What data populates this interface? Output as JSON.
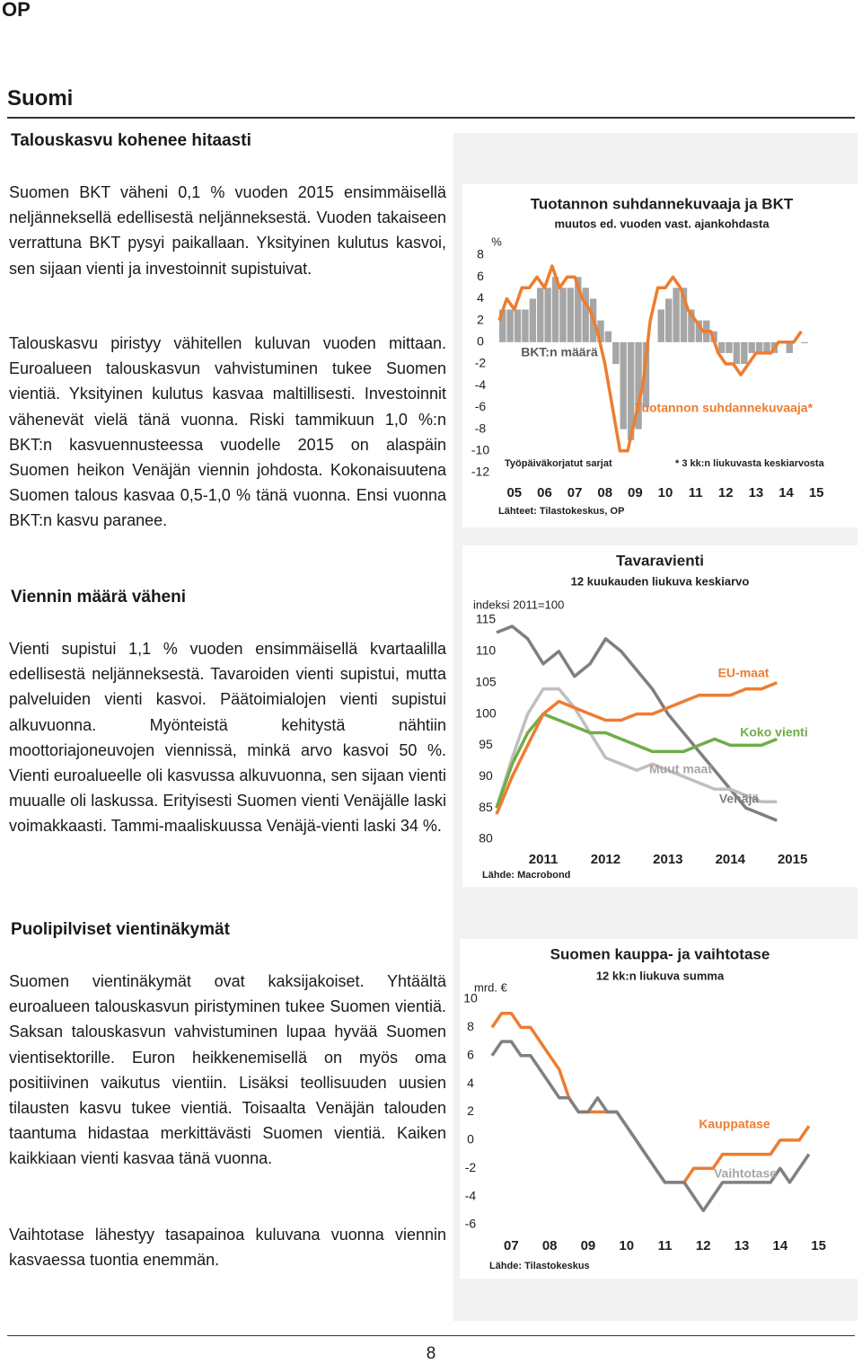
{
  "header": {
    "logo": "OP",
    "section": "Suomi"
  },
  "sections": [
    {
      "heading": "Talouskasvu kohenee hitaasti",
      "paragraphs": [
        "Suomen BKT väheni 0,1 % vuoden 2015 ensimmäisellä neljänneksellä edellisestä neljänneksestä. Vuoden takaiseen verrattuna BKT pysyi paikallaan. Yksityinen kulutus kasvoi, sen sijaan vienti ja investoinnit supistuivat.",
        "Talouskasvu piristyy vähitellen kuluvan vuoden mittaan. Euroalueen talouskasvun vahvistuminen tukee Suomen vientiä. Yksityinen kulutus kasvaa maltillisesti. Investoinnit vähenevät vielä tänä vuonna. Riski tammikuun 1,0 %:n BKT:n kasvuennusteessa vuodelle 2015 on alaspäin Suomen heikon Venäjän viennin johdosta. Kokonaisuutena Suomen talous kasvaa 0,5-1,0 % tänä vuonna. Ensi vuonna BKT:n kasvu paranee."
      ]
    },
    {
      "heading": "Viennin määrä väheni",
      "paragraphs": [
        "Vienti supistui 1,1 % vuoden ensimmäisellä kvartaalilla edellisestä neljänneksestä. Tavaroiden vienti supistui, mutta palveluiden vienti kasvoi. Päätoimialojen vienti supistui alkuvuonna. Myönteistä kehitystä nähtiin moottoriajoneuvojen viennissä, minkä arvo kasvoi 50 %. Vienti euroalueelle oli kasvussa alkuvuonna, sen sijaan vienti muualle oli laskussa. Erityisesti Suomen vienti Venäjälle laski voimakkaasti. Tammi-maaliskuussa Venäjä-vienti laski 34 %."
      ]
    },
    {
      "heading": "Puolipilviset vientinäkymät",
      "paragraphs": [
        "Suomen vientinäkymät ovat kaksijakoiset. Yhtäältä euroalueen talouskasvun piristyminen tukee Suomen vientiä. Saksan talouskasvun vahvistuminen lupaa hyvää Suomen vientisektorille. Euron heikkenemisellä on myös oma positiivinen vaikutus vientiin. Lisäksi teollisuuden uusien tilausten kasvu tukee vientiä. Toisaalta Venäjän talouden taantuma hidastaa merkittävästi Suomen vientiä. Kaiken kaikkiaan vienti kasvaa tänä vuonna.",
        "Vaihtotase lähestyy tasapainoa kuluvana vuonna viennin kasvaessa tuontia enemmän."
      ]
    }
  ],
  "footer": {
    "page": "8"
  },
  "chart_data": [
    {
      "type": "bar",
      "title": "Tuotannon suhdannekuvaaja ja BKT",
      "subtitle": "muutos ed. vuoden vast. ajankohdasta",
      "y_label": "%",
      "x": [
        2005,
        2005.25,
        2005.5,
        2005.75,
        2006,
        2006.25,
        2006.5,
        2006.75,
        2007,
        2007.25,
        2007.5,
        2007.75,
        2008,
        2008.25,
        2008.5,
        2008.75,
        2009,
        2009.25,
        2009.5,
        2009.75,
        2010,
        2010.25,
        2010.5,
        2010.75,
        2011,
        2011.25,
        2011.5,
        2011.75,
        2012,
        2012.25,
        2012.5,
        2012.75,
        2013,
        2013.25,
        2013.5,
        2013.75,
        2014,
        2014.25,
        2014.5,
        2014.75,
        2015
      ],
      "series": [
        {
          "name": "BKT:n määrä",
          "type": "bar",
          "color": "#a6a6a6",
          "label_color": "#595959",
          "values": [
            3,
            3,
            3,
            3,
            4,
            5,
            5,
            6,
            5,
            5,
            6,
            5,
            4,
            2,
            1,
            -2,
            -8,
            -9,
            -8,
            -6,
            0,
            3,
            4,
            5,
            5,
            3,
            2,
            2,
            1,
            -1,
            -1,
            -2,
            -2,
            -1,
            -1,
            -1,
            -1,
            0,
            -1,
            0,
            -0.1
          ]
        },
        {
          "name": "Tuotannon suhdannekuvaaja*",
          "type": "line",
          "color": "#ed7d31",
          "label_color": "#ed7d31",
          "values": [
            2,
            4,
            3,
            5,
            5,
            6,
            5,
            7,
            5,
            6,
            6,
            4,
            3,
            1,
            -2,
            -6,
            -10,
            -10,
            -7,
            -4,
            2,
            5,
            5,
            6,
            5,
            3,
            2,
            1,
            1,
            -1,
            -2,
            -2,
            -3,
            -2,
            -1,
            -1,
            -1,
            0,
            0,
            0,
            1
          ]
        }
      ],
      "xlim": [
        2005,
        2016
      ],
      "xticks": [
        {
          "value": 2005.5,
          "label": "05"
        },
        {
          "value": 2006.5,
          "label": "06"
        },
        {
          "value": 2007.5,
          "label": "07"
        },
        {
          "value": 2008.5,
          "label": "08"
        },
        {
          "value": 2009.5,
          "label": "09"
        },
        {
          "value": 2010.5,
          "label": "10"
        },
        {
          "value": 2011.5,
          "label": "11"
        },
        {
          "value": 2012.5,
          "label": "12"
        },
        {
          "value": 2013.5,
          "label": "13"
        },
        {
          "value": 2014.5,
          "label": "14"
        },
        {
          "value": 2015.5,
          "label": "15"
        }
      ],
      "ylim": [
        -12,
        8
      ],
      "yticks": [
        -12,
        -10,
        -8,
        -6,
        -4,
        -2,
        0,
        2,
        4,
        6,
        8
      ],
      "notes": [
        "Työpäiväkorjatut sarjat",
        "* 3 kk:n liukuvasta keskiarvosta"
      ],
      "source": "Lähteet: Tilastokeskus, OP"
    },
    {
      "type": "line",
      "title": "Tavaravienti",
      "subtitle": "12 kuukauden liukuva keskiarvo",
      "y_label": "indeksi 2011=100",
      "x": [
        2010.75,
        2011,
        2011.25,
        2011.5,
        2011.75,
        2012,
        2012.25,
        2012.5,
        2012.75,
        2013,
        2013.25,
        2013.5,
        2013.75,
        2014,
        2014.25,
        2014.5,
        2014.75,
        2015,
        2015.25
      ],
      "series": [
        {
          "name": "Venäjä",
          "color": "#7f7f7f",
          "label_color": "#7f7f7f",
          "values": [
            113,
            114,
            112,
            108,
            110,
            106,
            108,
            112,
            110,
            107,
            104,
            100,
            97,
            94,
            91,
            88,
            85,
            84,
            83
          ]
        },
        {
          "name": "Muut maat",
          "color": "#bfbfbf",
          "label_color": "#a6a6a6",
          "values": [
            85,
            93,
            100,
            104,
            104,
            101,
            97,
            93,
            92,
            91,
            92,
            91,
            90,
            89,
            88,
            88,
            87,
            86,
            86
          ]
        },
        {
          "name": "Koko vienti",
          "color": "#70ad47",
          "label_color": "#70ad47",
          "values": [
            85,
            92,
            97,
            100,
            99,
            98,
            97,
            97,
            96,
            95,
            94,
            94,
            94,
            95,
            96,
            95,
            95,
            95,
            96
          ]
        },
        {
          "name": "EU-maat",
          "color": "#ed7d31",
          "label_color": "#ed7d31",
          "values": [
            84,
            90,
            95,
            100,
            102,
            101,
            100,
            99,
            99,
            100,
            100,
            101,
            102,
            103,
            103,
            103,
            104,
            104,
            105
          ]
        }
      ],
      "xlim": [
        2010.75,
        2015.75
      ],
      "xticks": [
        {
          "value": 2011.5,
          "label": "2011"
        },
        {
          "value": 2012.5,
          "label": "2012"
        },
        {
          "value": 2013.5,
          "label": "2013"
        },
        {
          "value": 2014.5,
          "label": "2014"
        },
        {
          "value": 2015.5,
          "label": "2015"
        }
      ],
      "ylim": [
        80,
        115
      ],
      "yticks": [
        80,
        85,
        90,
        95,
        100,
        105,
        110,
        115
      ],
      "notes": [],
      "source": "Lähde: Macrobond"
    },
    {
      "type": "line",
      "title": "Suomen kauppa- ja vaihtotase",
      "subtitle": "12 kk:n liukuva summa",
      "y_label": "mrd. €",
      "x": [
        2007,
        2007.25,
        2007.5,
        2007.75,
        2008,
        2008.25,
        2008.5,
        2008.75,
        2009,
        2009.25,
        2009.5,
        2009.75,
        2010,
        2010.25,
        2010.5,
        2010.75,
        2011,
        2011.25,
        2011.5,
        2011.75,
        2012,
        2012.25,
        2012.5,
        2012.75,
        2013,
        2013.25,
        2013.5,
        2013.75,
        2014,
        2014.25,
        2014.5,
        2014.75,
        2015,
        2015.25
      ],
      "series": [
        {
          "name": "Kauppatase",
          "color": "#ed7d31",
          "label_color": "#ed7d31",
          "values": [
            8,
            9,
            9,
            8,
            8,
            7,
            6,
            5,
            3,
            2,
            2,
            2,
            2,
            2,
            1,
            0,
            -1,
            -2,
            -3,
            -3,
            -3,
            -2,
            -2,
            -2,
            -1,
            -1,
            -1,
            -1,
            -1,
            -1,
            0,
            0,
            0,
            1
          ]
        },
        {
          "name": "Vaihtotase",
          "color": "#808080",
          "label_color": "#a6a6a6",
          "values": [
            6,
            7,
            7,
            6,
            6,
            5,
            4,
            3,
            3,
            2,
            2,
            3,
            2,
            2,
            1,
            0,
            -1,
            -2,
            -3,
            -3,
            -3,
            -4,
            -5,
            -4,
            -3,
            -3,
            -3,
            -3,
            -3,
            -3,
            -2,
            -3,
            -2,
            -1
          ]
        }
      ],
      "xlim": [
        2007,
        2016
      ],
      "xticks": [
        {
          "value": 2007.5,
          "label": "07"
        },
        {
          "value": 2008.5,
          "label": "08"
        },
        {
          "value": 2009.5,
          "label": "09"
        },
        {
          "value": 2010.5,
          "label": "10"
        },
        {
          "value": 2011.5,
          "label": "11"
        },
        {
          "value": 2012.5,
          "label": "12"
        },
        {
          "value": 2013.5,
          "label": "13"
        },
        {
          "value": 2014.5,
          "label": "14"
        },
        {
          "value": 2015.5,
          "label": "15"
        }
      ],
      "ylim": [
        -6,
        10
      ],
      "yticks": [
        -6,
        -4,
        -2,
        0,
        2,
        4,
        6,
        8,
        10
      ],
      "notes": [],
      "source": "Lähde: Tilastokeskus"
    }
  ]
}
